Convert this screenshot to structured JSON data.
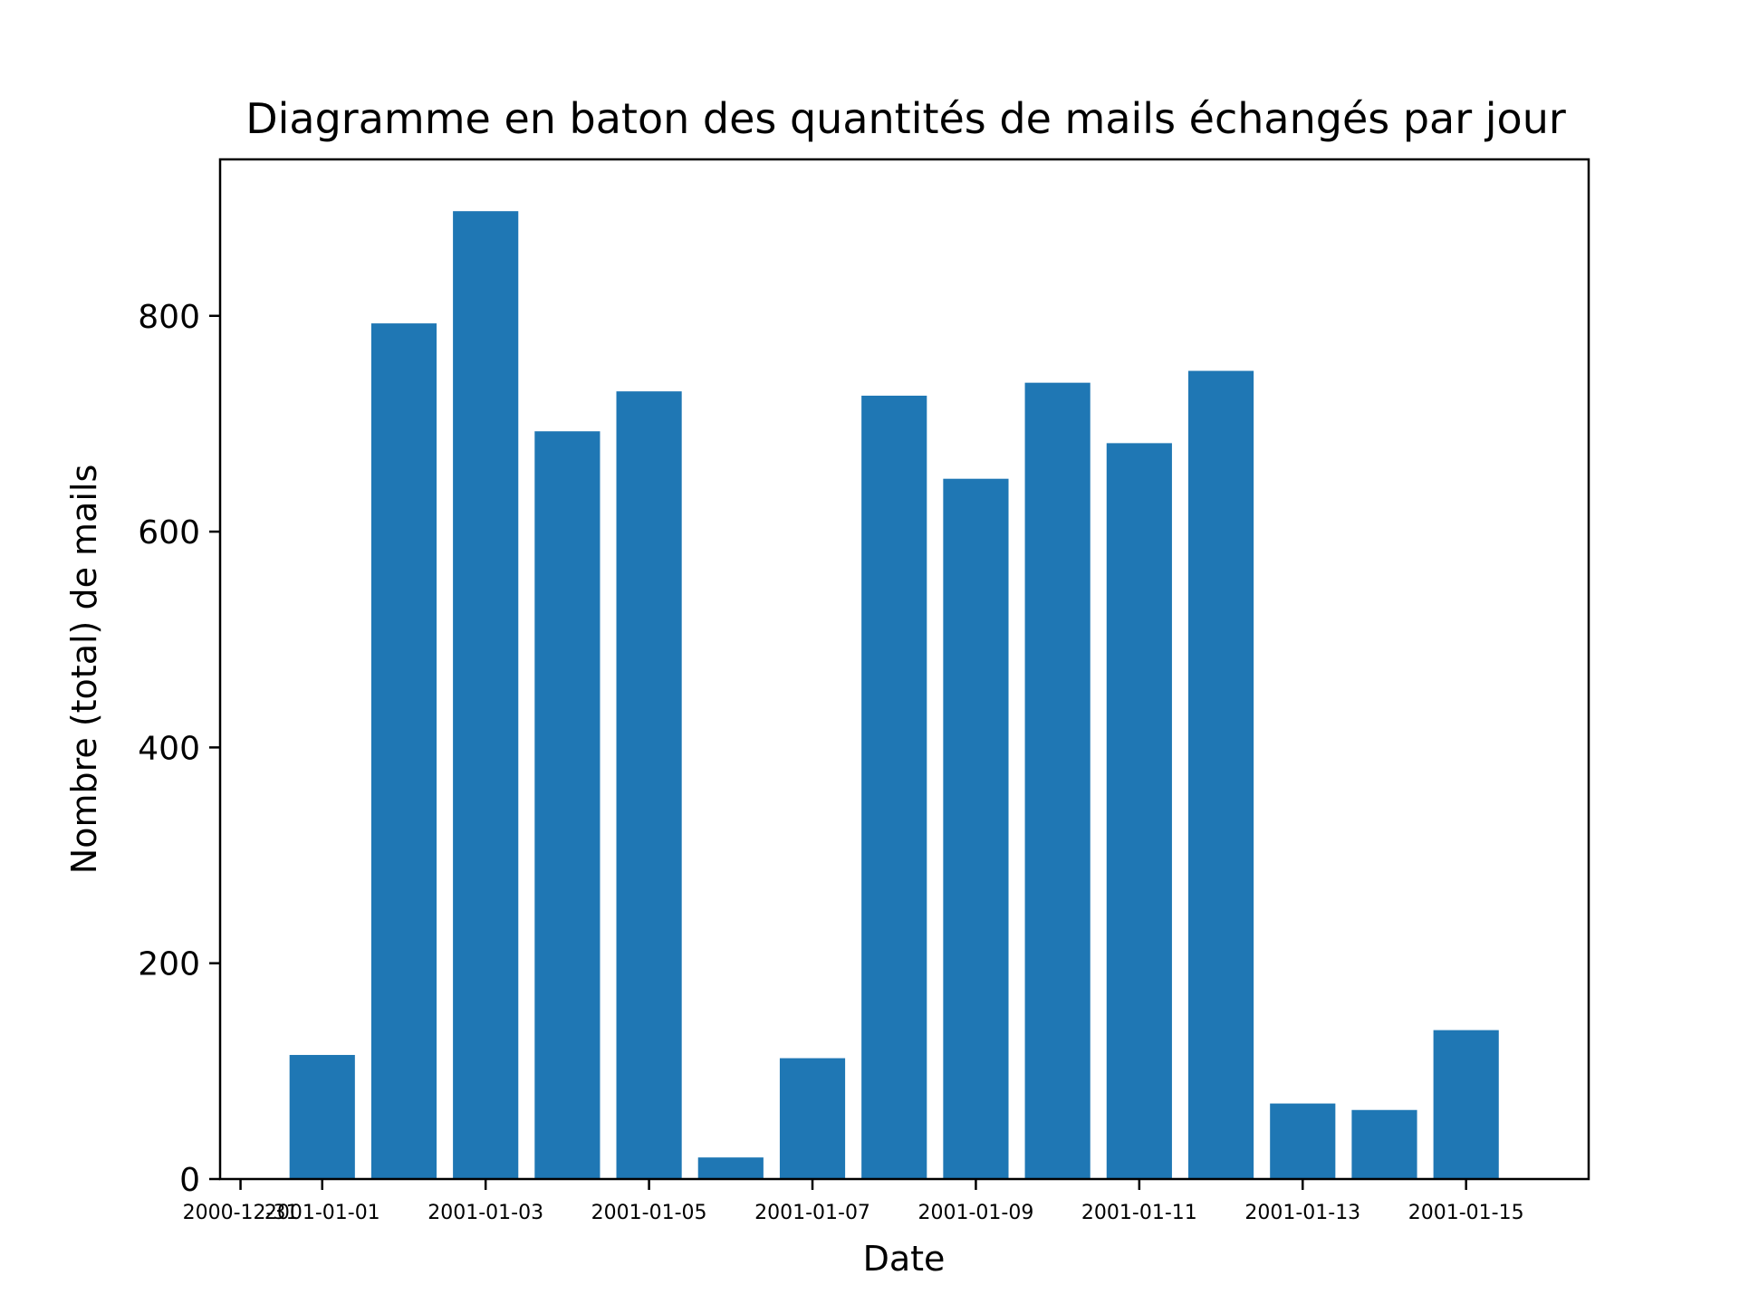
{
  "chart_data": {
    "type": "bar",
    "title": "Diagramme en baton des quantités de mails échangés par jour",
    "xlabel": "Date",
    "ylabel": "Nombre (total) de mails",
    "x_axis_type": "date",
    "categories": [
      "2001-01-01",
      "2001-01-02",
      "2001-01-03",
      "2001-01-04",
      "2001-01-05",
      "2001-01-06",
      "2001-01-07",
      "2001-01-08",
      "2001-01-09",
      "2001-01-10",
      "2001-01-11",
      "2001-01-12",
      "2001-01-13",
      "2001-01-14",
      "2001-01-15"
    ],
    "values": [
      115,
      793,
      897,
      693,
      730,
      20,
      112,
      726,
      649,
      738,
      682,
      749,
      70,
      64,
      138
    ],
    "bar_color": "#1f77b4",
    "xlim": [
      "2000-12-30T18:00",
      "2001-01-16T12:00"
    ],
    "ylim": [
      0,
      945
    ],
    "yticks": [
      0,
      200,
      400,
      600,
      800
    ],
    "xticks": [
      "2000-12-31",
      "2001-01-01",
      "2001-01-03",
      "2001-01-05",
      "2001-01-07",
      "2001-01-09",
      "2001-01-11",
      "2001-01-13",
      "2001-01-15"
    ],
    "grid": false
  }
}
